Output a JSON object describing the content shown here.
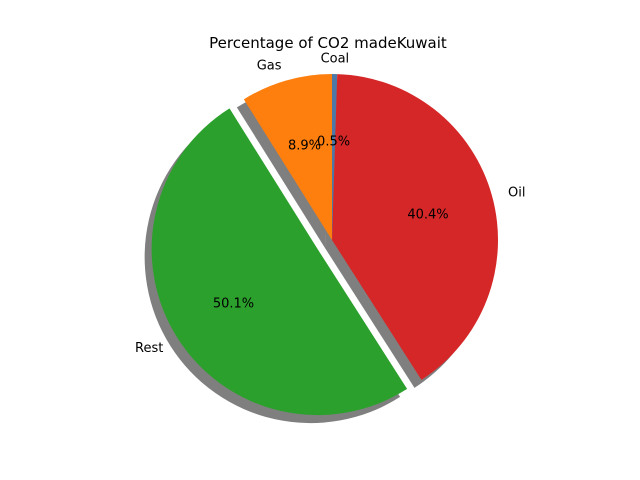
{
  "chart_data": {
    "type": "pie",
    "title": "Percentage of CO2 madeKuwait",
    "categories": [
      "Coal",
      "Oil",
      "Rest",
      "Gas"
    ],
    "values": [
      0.5,
      40.4,
      50.1,
      8.9
    ],
    "value_labels": [
      "0.5%",
      "40.4%",
      "50.1%",
      "8.9%"
    ],
    "colors": [
      "#4e79a7",
      "#d62728",
      "#2ca02c",
      "#ff7f0e"
    ],
    "exploded": [
      "Rest"
    ],
    "shadow": true,
    "start_angle_deg": 90,
    "direction": "clockwise"
  }
}
